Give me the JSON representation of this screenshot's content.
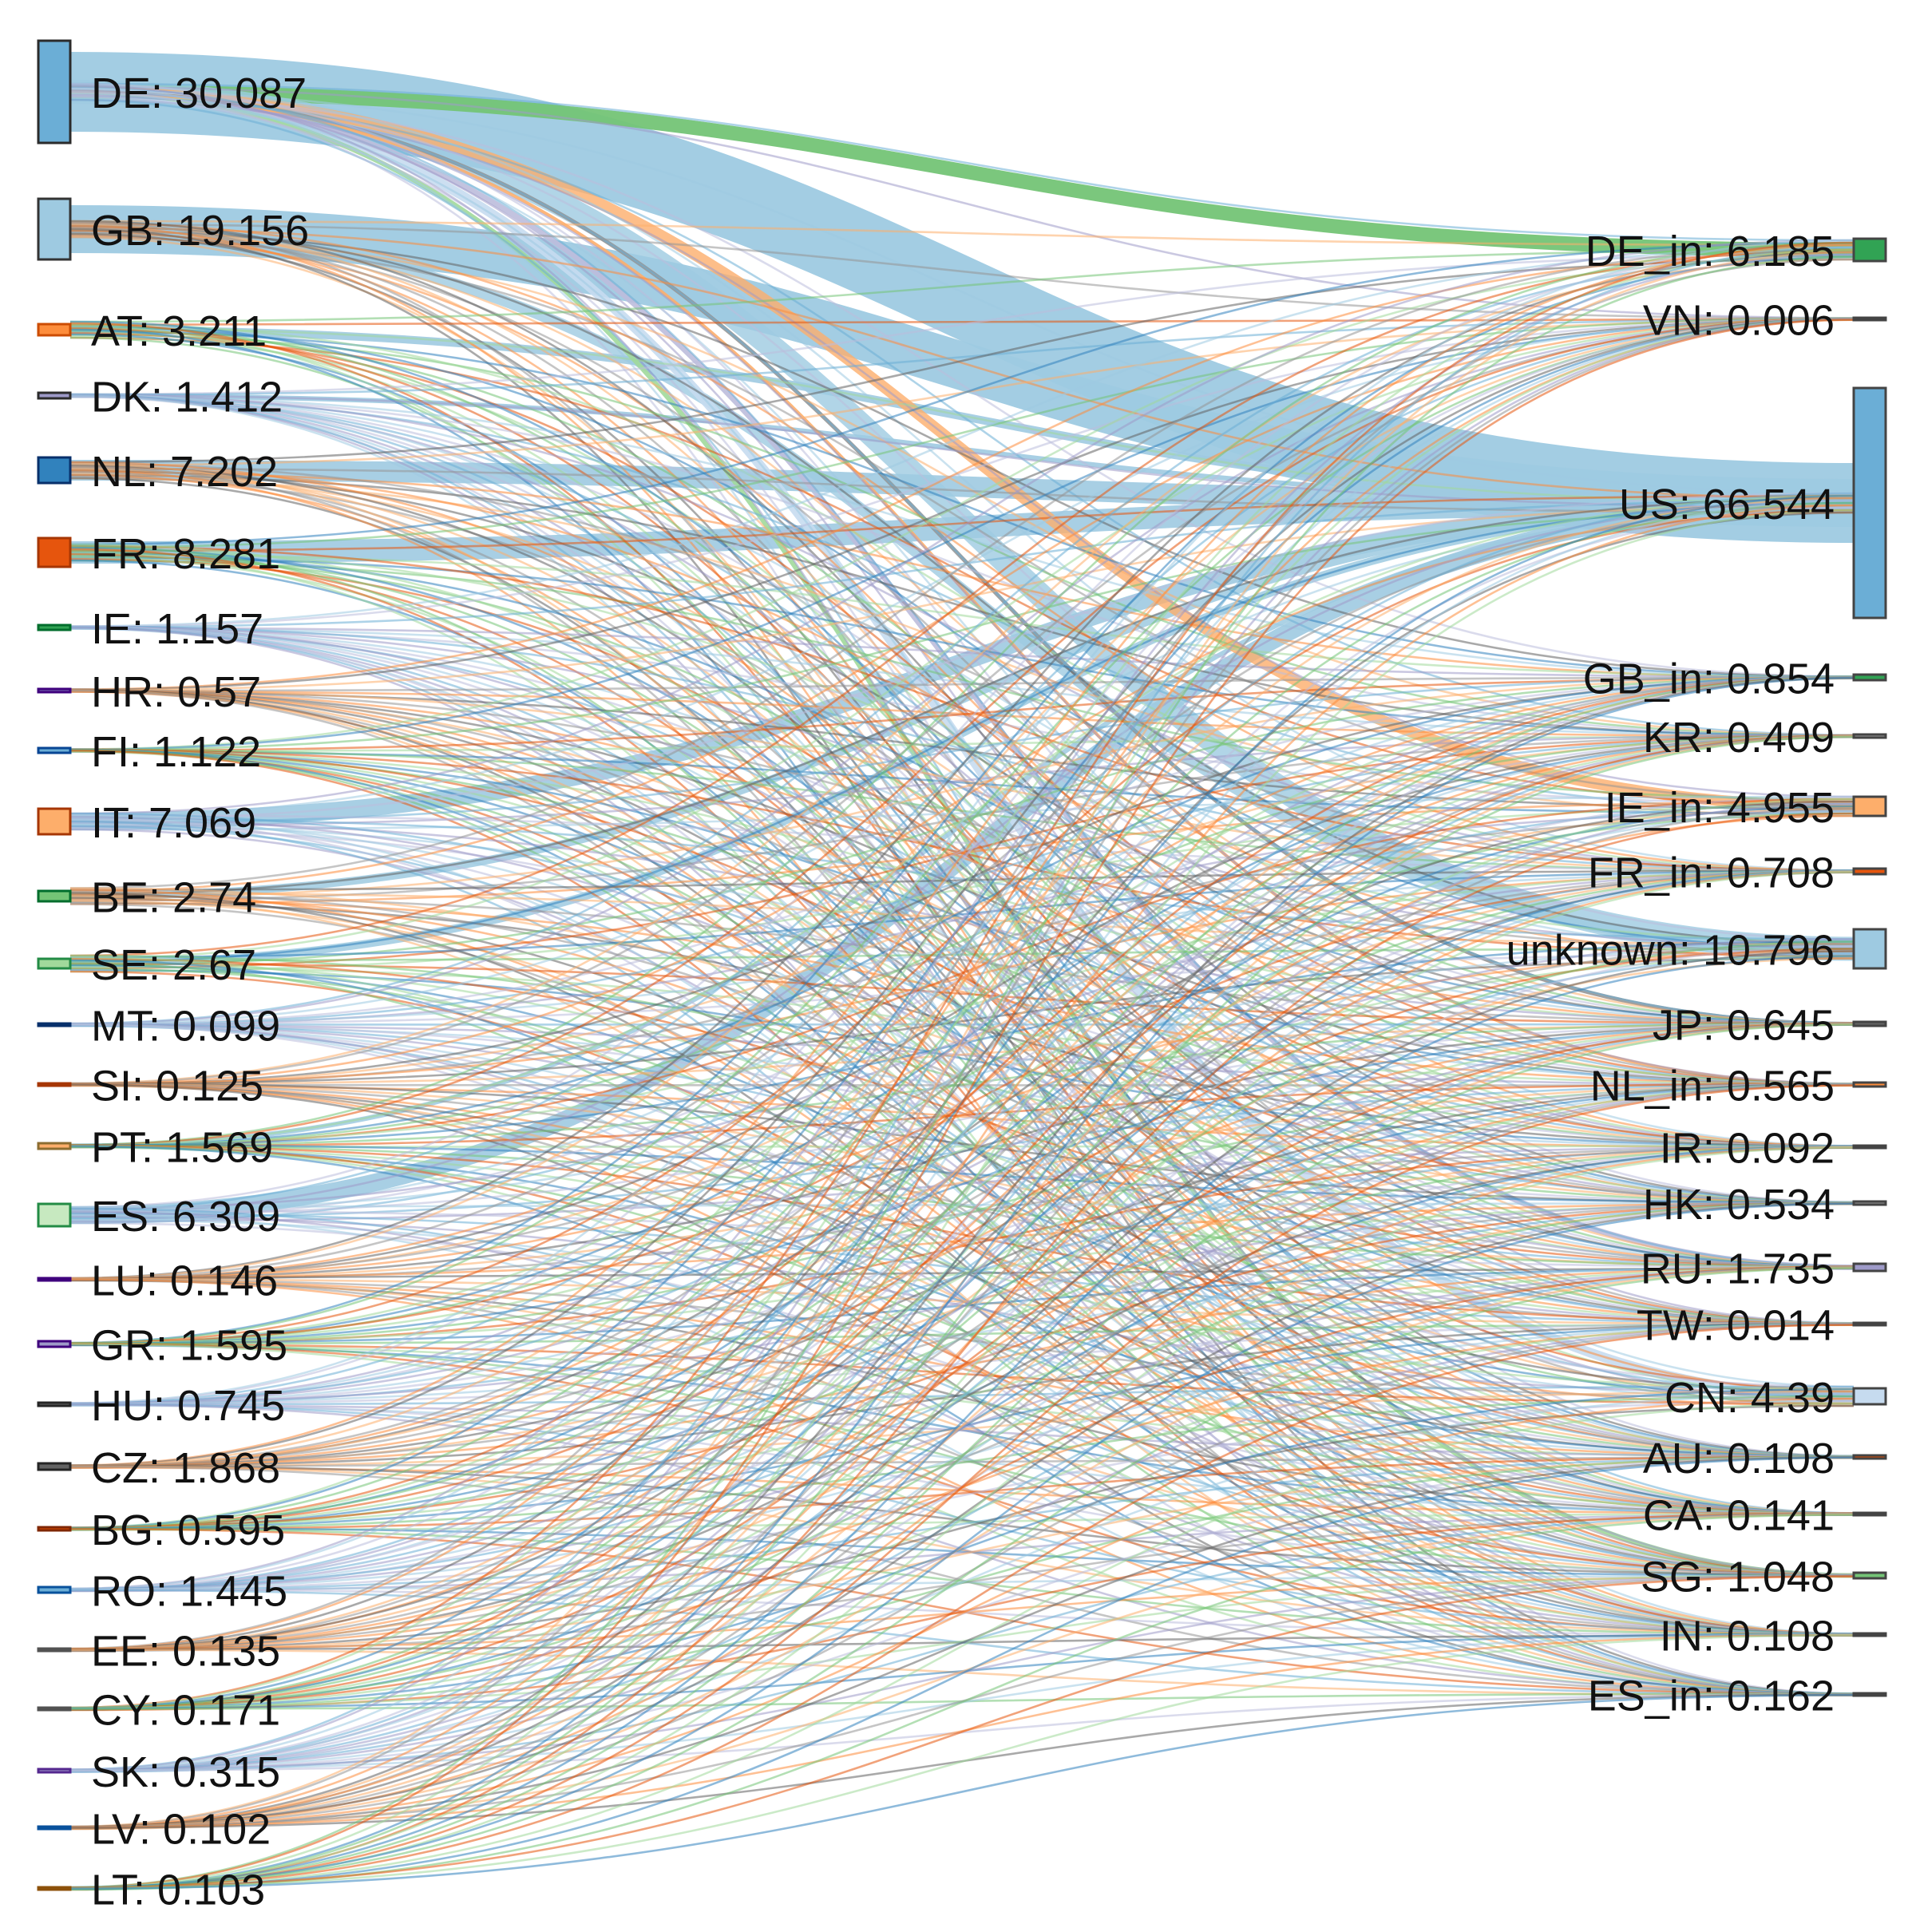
{
  "chart_data": {
    "type": "sankey",
    "sources": [
      {
        "name": "DE",
        "value": "30.087",
        "color": "#6baed6"
      },
      {
        "name": "GB",
        "value": "19.156",
        "color": "#9ecae1"
      },
      {
        "name": "AT",
        "value": "3.211",
        "color": "#fd8d3c"
      },
      {
        "name": "DK",
        "value": "1.412",
        "color": "#9e9ac8"
      },
      {
        "name": "NL",
        "value": "7.202",
        "color": "#3182bd"
      },
      {
        "name": "FR",
        "value": "8.281",
        "color": "#e6550d"
      },
      {
        "name": "IE",
        "value": "1.157",
        "color": "#31a354"
      },
      {
        "name": "HR",
        "value": "0.57",
        "color": "#756bb1"
      },
      {
        "name": "FI",
        "value": "1.122",
        "color": "#6baed6"
      },
      {
        "name": "IT",
        "value": "7.069",
        "color": "#fdae6b"
      },
      {
        "name": "BE",
        "value": "2.74",
        "color": "#74c476"
      },
      {
        "name": "SE",
        "value": "2.67",
        "color": "#a1d99b"
      },
      {
        "name": "MT",
        "value": "0.099",
        "color": "#3182bd"
      },
      {
        "name": "SI",
        "value": "0.125",
        "color": "#e6550d"
      },
      {
        "name": "PT",
        "value": "1.569",
        "color": "#fdae6b"
      },
      {
        "name": "ES",
        "value": "6.309",
        "color": "#c7e9c0"
      },
      {
        "name": "LU",
        "value": "0.146",
        "color": "#756bb1"
      },
      {
        "name": "GR",
        "value": "1.595",
        "color": "#9e9ac8"
      },
      {
        "name": "HU",
        "value": "0.745",
        "color": "#636363"
      },
      {
        "name": "CZ",
        "value": "1.868",
        "color": "#636363"
      },
      {
        "name": "BG",
        "value": "0.595",
        "color": "#d94801"
      },
      {
        "name": "RO",
        "value": "1.445",
        "color": "#6baed6"
      },
      {
        "name": "EE",
        "value": "0.135",
        "color": "#969696"
      },
      {
        "name": "CY",
        "value": "0.171",
        "color": "#969696"
      },
      {
        "name": "SK",
        "value": "0.315",
        "color": "#9e9ac8"
      },
      {
        "name": "LV",
        "value": "0.102",
        "color": "#6baed6"
      },
      {
        "name": "LT",
        "value": "0.103",
        "color": "#fd8d3c"
      }
    ],
    "targets": [
      {
        "name": "DE_in",
        "value": "6.185",
        "color": "#31a354"
      },
      {
        "name": "VN",
        "value": "0.006",
        "color": "#969696"
      },
      {
        "name": "US",
        "value": "66.544",
        "color": "#6baed6"
      },
      {
        "name": "GB_in",
        "value": "0.854",
        "color": "#31a354"
      },
      {
        "name": "KR",
        "value": "0.409",
        "color": "#969696"
      },
      {
        "name": "IE_in",
        "value": "4.955",
        "color": "#fdae6b"
      },
      {
        "name": "FR_in",
        "value": "0.708",
        "color": "#e6550d"
      },
      {
        "name": "unknown",
        "value": "10.796",
        "color": "#9ecae1"
      },
      {
        "name": "JP",
        "value": "0.645",
        "color": "#636363"
      },
      {
        "name": "NL_in",
        "value": "0.565",
        "color": "#fd8d3c"
      },
      {
        "name": "IR",
        "value": "0.092",
        "color": "#969696"
      },
      {
        "name": "HK",
        "value": "0.534",
        "color": "#969696"
      },
      {
        "name": "RU",
        "value": "1.735",
        "color": "#9e9ac8"
      },
      {
        "name": "TW",
        "value": "0.014",
        "color": "#3182bd"
      },
      {
        "name": "CN",
        "value": "4.39",
        "color": "#c6dbef"
      },
      {
        "name": "AU",
        "value": "0.108",
        "color": "#d94801"
      },
      {
        "name": "CA",
        "value": "0.141",
        "color": "#756bb1"
      },
      {
        "name": "SG",
        "value": "1.048",
        "color": "#74c476"
      },
      {
        "name": "IN",
        "value": "0.108",
        "color": "#969696"
      },
      {
        "name": "ES_in",
        "value": "0.162",
        "color": "#756bb1"
      }
    ],
    "labels": {
      "sources": [
        "DE: 30.087",
        "GB: 19.156",
        "AT: 3.211",
        "DK: 1.412",
        "NL: 7.202",
        "FR: 8.281",
        "IE: 1.157",
        "HR: 0.57",
        "FI: 1.122",
        "IT: 7.069",
        "BE: 2.74",
        "SE: 2.67",
        "MT: 0.099",
        "SI: 0.125",
        "PT: 1.569",
        "ES: 6.309",
        "LU: 0.146",
        "GR: 1.595",
        "HU: 0.745",
        "CZ: 1.868",
        "BG: 0.595",
        "RO: 1.445",
        "EE: 0.135",
        "CY: 0.171",
        "SK: 0.315",
        "LV: 0.102",
        "LT: 0.103"
      ],
      "targets": [
        "DE_in: 6.185",
        "VN: 0.006",
        "US: 66.544",
        "GB_in: 0.854",
        "KR: 0.409",
        "IE_in: 4.955",
        "FR_in: 0.708",
        "unknown: 10.796",
        "JP: 0.645",
        "NL_in: 0.565",
        "IR: 0.092",
        "HK: 0.534",
        "RU: 1.735",
        "TW: 0.014",
        "CN: 4.39",
        "AU: 0.108",
        "CA: 0.141",
        "SG: 1.048",
        "IN: 0.108",
        "ES_in: 0.162"
      ]
    }
  }
}
